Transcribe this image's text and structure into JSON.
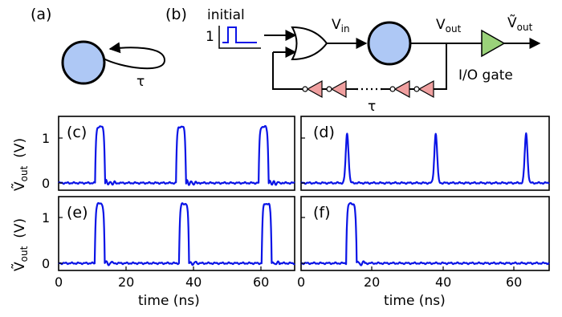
{
  "schematic": {
    "label_a": "(a)",
    "label_b": "(b)",
    "tau_a": "τ",
    "tau_b": "τ",
    "initial_label": "initial",
    "initial_level": "1",
    "vin_label": "V",
    "vin_sub": "in",
    "vout_label": "V",
    "vout_sub": "out",
    "vout_tilde_label": "Ṽ",
    "vout_tilde_sub": "out",
    "io_gate_label": "I/O gate",
    "colors": {
      "node": "#aec8f5",
      "io_gate": "#9ad27a",
      "inverter": "#f0a0a0",
      "trace": "#0a14e6"
    }
  },
  "axes": {
    "ylabel_main": "Ṽ",
    "ylabel_sub": "out",
    "ylabel_unit": "(V)",
    "xlabel": "time (ns)",
    "y_ticks": [
      "0",
      "1"
    ],
    "x_ticks": [
      "0",
      "20",
      "40",
      "60"
    ]
  },
  "chart_data": [
    {
      "type": "line",
      "panel": "(c)",
      "xlim": [
        0,
        70
      ],
      "ylim": [
        -0.1,
        1.45
      ],
      "peaks": [
        12,
        36,
        60.5
      ],
      "peak_value": 1.25,
      "ringing": true
    },
    {
      "type": "line",
      "panel": "(d)",
      "xlim": [
        0,
        70
      ],
      "ylim": [
        -0.1,
        1.45
      ],
      "peaks": [
        13,
        38,
        63.5
      ],
      "peak_value": 1.1,
      "ringing": false
    },
    {
      "type": "line",
      "panel": "(e)",
      "xlim": [
        0,
        70
      ],
      "ylim": [
        -0.1,
        1.45
      ],
      "peaks": [
        12,
        37,
        61.5
      ],
      "peak_value": 1.3,
      "ringing": false
    },
    {
      "type": "line",
      "panel": "(f)",
      "xlim": [
        0,
        70
      ],
      "ylim": [
        -0.1,
        1.45
      ],
      "peaks": [
        14
      ],
      "peak_value": 1.3,
      "ringing": false
    }
  ]
}
